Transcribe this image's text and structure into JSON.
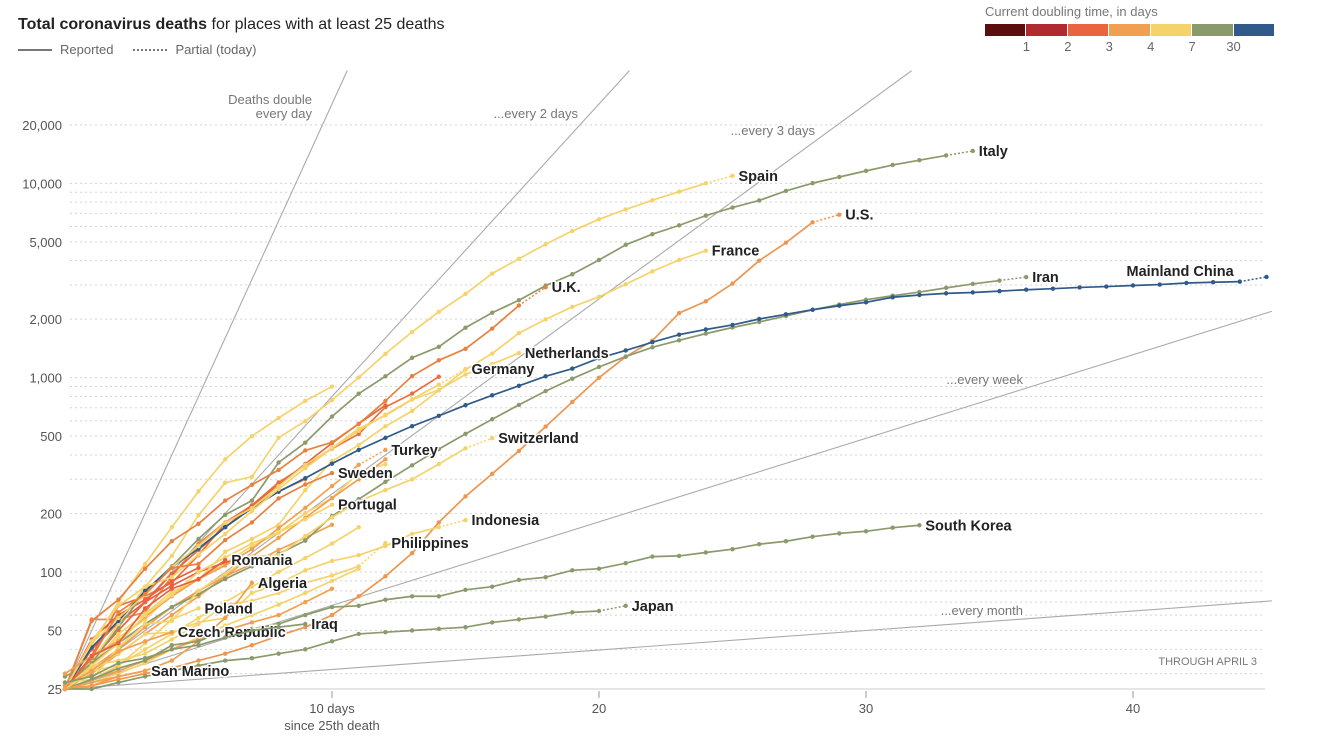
{
  "header": {
    "title_bold": "Total coronavirus deaths",
    "title_rest": " for places with at least 25 deaths",
    "legend_reported": "Reported",
    "legend_partial": "Partial (today)"
  },
  "color_legend": {
    "caption": "Current doubling time, in days",
    "colors": [
      "#5a0e0e",
      "#b02a30",
      "#e8653f",
      "#f0a050",
      "#f5d36a",
      "#8a9a6a",
      "#2f5a8a"
    ],
    "ticks": [
      "1",
      "2",
      "3",
      "4",
      "7",
      "30"
    ]
  },
  "chart_data": {
    "type": "line",
    "scale_y": "log",
    "xlabel_line1": "10 days",
    "xlabel_line2": "since 25th death",
    "xticks": [
      10,
      20,
      30,
      40
    ],
    "xtick_labels": [
      "",
      "20",
      "30",
      "40"
    ],
    "xlim": [
      0,
      45.2
    ],
    "ylim": [
      25,
      38000
    ],
    "yticks": [
      25,
      50,
      100,
      200,
      500,
      1000,
      2000,
      5000,
      10000,
      20000
    ],
    "ytick_labels": [
      "25",
      "50",
      "100",
      "200",
      "500",
      "1,000",
      "2,000",
      "5,000",
      "10,000",
      "20,000"
    ],
    "grid": true,
    "note": "THROUGH APRIL 3",
    "reference_lines": [
      {
        "doubling_days": 1,
        "label1": "Deaths double",
        "label2": "every day"
      },
      {
        "doubling_days": 2,
        "label1": "...every 2 days"
      },
      {
        "doubling_days": 3,
        "label1": "...every 3 days"
      },
      {
        "doubling_days": 7,
        "label1": "...every week"
      },
      {
        "doubling_days": 30,
        "label1": "...every month"
      }
    ],
    "series": [
      {
        "color": "#e8884a",
        "values": [
          25,
          57,
          57,
          62,
          95,
          140,
          180,
          220,
          260,
          300
        ]
      },
      {
        "color": "#e8703f",
        "values": [
          25,
          37,
          67,
          75,
          88,
          122,
          178,
          220,
          289,
          353,
          431,
          513,
          705,
          828,
          1011
        ]
      },
      {
        "color": "#f5d36a",
        "values": [
          25,
          34,
          46,
          57,
          77,
          92,
          111,
          136,
          159,
          201,
          240,
          324,
          359
        ]
      },
      {
        "color": "#e8603f",
        "values": [
          25,
          40,
          55,
          70,
          85,
          100,
          112,
          120
        ]
      },
      {
        "color": "#e8603f",
        "values": [
          25,
          45,
          60,
          72,
          90,
          105
        ]
      },
      {
        "color": "#f0a050",
        "values": [
          25,
          30,
          38,
          48,
          60,
          75,
          95,
          120,
          150,
          190,
          240,
          300,
          380
        ]
      },
      {
        "color": "#f5d36a",
        "values": [
          25,
          28,
          33,
          40,
          48,
          58,
          70,
          84,
          100,
          118,
          140,
          170
        ]
      },
      {
        "color": "#f0a050",
        "values": [
          25,
          32,
          40,
          52,
          66,
          80,
          95,
          110,
          130,
          150,
          175
        ]
      },
      {
        "color": "#f5d36a",
        "values": [
          25,
          27,
          30,
          34,
          40,
          46,
          53,
          60,
          68,
          78,
          90,
          104
        ]
      },
      {
        "color": "#e8653f",
        "values": [
          25,
          35,
          50,
          70,
          98,
          130,
          170,
          220,
          280,
          360,
          460,
          580,
          720
        ]
      },
      {
        "color": "#f5d36a",
        "values": [
          25,
          42,
          70,
          110,
          170,
          260,
          380,
          500,
          620,
          760,
          900
        ]
      },
      {
        "color": "#f0a050",
        "values": [
          25,
          28,
          31,
          35,
          40,
          45,
          50,
          55,
          60,
          70,
          82
        ]
      },
      {
        "name": "Italy",
        "color": "#8a9a6a",
        "partial": true,
        "values": [
          29,
          34,
          52,
          79,
          107,
          148,
          197,
          233,
          366,
          463,
          631,
          827,
          1016,
          1266,
          1441,
          1809,
          2158,
          2503,
          2978,
          3405,
          4032,
          4825,
          5476,
          6077,
          6820,
          7503,
          8165,
          9134,
          10023,
          10779,
          11591,
          12428,
          13155,
          13915,
          14681
        ]
      },
      {
        "name": "Spain",
        "color": "#f5d36a",
        "partial": true,
        "values": [
          25,
          35,
          54,
          84,
          121,
          196,
          288,
          309,
          491,
          598,
          767,
          1002,
          1326,
          1720,
          2182,
          2696,
          3434,
          4089,
          4858,
          5690,
          6528,
          7340,
          8189,
          9053,
          10003,
          10935
        ]
      },
      {
        "name": "U.S.",
        "color": "#ec9650",
        "partial": true,
        "values": [
          25,
          26,
          28,
          30,
          32,
          35,
          38,
          42,
          47,
          52,
          60,
          75,
          95,
          125,
          180,
          245,
          320,
          420,
          560,
          750,
          1000,
          1280,
          1550,
          2150,
          2470,
          3050,
          4000,
          4950,
          6300,
          6900
        ]
      },
      {
        "name": "France",
        "color": "#f5d36a",
        "values": [
          25,
          33,
          48,
          61,
          79,
          91,
          127,
          148,
          175,
          264,
          372,
          450,
          562,
          674,
          860,
          1100,
          1331,
          1696,
          1995,
          2314,
          2606,
          3024,
          3523,
          4032,
          4503
        ]
      },
      {
        "name": "Iran",
        "color": "#8a9a6a",
        "partial": true,
        "values": [
          26,
          34,
          43,
          54,
          66,
          77,
          92,
          107,
          124,
          145,
          194,
          237,
          291,
          354,
          429,
          514,
          611,
          724,
          853,
          988,
          1135,
          1284,
          1433,
          1556,
          1685,
          1812,
          1934,
          2077,
          2234,
          2378,
          2517,
          2640,
          2757,
          2898,
          3036,
          3160,
          3294
        ]
      },
      {
        "name": "Mainland China",
        "color": "#2f5a8a",
        "partial": true,
        "values": [
          25,
          41,
          56,
          80,
          106,
          132,
          170,
          213,
          259,
          304,
          361,
          425,
          490,
          563,
          636,
          722,
          811,
          908,
          1016,
          1113,
          1259,
          1380,
          1523,
          1665,
          1770,
          1868,
          2004,
          2118,
          2236,
          2345,
          2442,
          2592,
          2663,
          2715,
          2744,
          2788,
          2835,
          2870,
          2912,
          2943,
          2981,
          3013,
          3070,
          3098,
          3120,
          3300
        ]
      },
      {
        "name": "U.K.",
        "color": "#e8803f",
        "partial": true,
        "values": [
          25,
          56,
          72,
          104,
          144,
          177,
          233,
          281,
          335,
          422,
          465,
          578,
          759,
          1019,
          1228,
          1408,
          1789,
          2352,
          2921
        ]
      },
      {
        "name": "Netherlands",
        "color": "#f5d36a",
        "values": [
          25,
          43,
          58,
          76,
          106,
          136,
          179,
          213,
          276,
          356,
          434,
          546,
          639,
          771,
          864,
          1039,
          1173,
          1339
        ]
      },
      {
        "name": "Germany",
        "color": "#f5d36a",
        "partial": true,
        "values": [
          25,
          44,
          67,
          84,
          94,
          123,
          157,
          206,
          267,
          342,
          433,
          533,
          645,
          775,
          920,
          1107
        ]
      },
      {
        "name": "Switzerland",
        "color": "#f5d36a",
        "partial": true,
        "values": [
          27,
          28,
          41,
          54,
          56,
          80,
          98,
          120,
          122,
          153,
          191,
          231,
          264,
          300,
          359,
          433,
          488
        ]
      },
      {
        "name": "Turkey",
        "color": "#f0a050",
        "partial": true,
        "values": [
          30,
          37,
          44,
          59,
          75,
          92,
          108,
          131,
          168,
          214,
          277,
          356,
          425
        ]
      },
      {
        "name": "Sweden",
        "color": "#e8803f",
        "values": [
          25,
          36,
          62,
          77,
          105,
          110,
          146,
          180,
          239,
          282,
          323
        ]
      },
      {
        "name": "Portugal",
        "color": "#f5d36a",
        "values": [
          25,
          33,
          43,
          60,
          76,
          100,
          119,
          140,
          160,
          187,
          222
        ]
      },
      {
        "name": "Indonesia",
        "color": "#f5d36a",
        "partial": true,
        "values": [
          25,
          32,
          38,
          48,
          49,
          55,
          58,
          78,
          87,
          102,
          114,
          122,
          136,
          157,
          170,
          185
        ]
      },
      {
        "name": "Philippines",
        "color": "#f5d36a",
        "partial": true,
        "values": [
          25,
          33,
          35,
          38,
          45,
          54,
          68,
          71,
          78,
          88,
          96,
          107,
          141
        ]
      },
      {
        "name": "Romania",
        "color": "#e8603f",
        "values": [
          25,
          37,
          43,
          65,
          82,
          92,
          115
        ]
      },
      {
        "name": "Algeria",
        "color": "#f0a050",
        "values": [
          25,
          26,
          29,
          31,
          35,
          44,
          58,
          88
        ]
      },
      {
        "name": "South Korea",
        "color": "#8a9a6a",
        "values": [
          25,
          28,
          32,
          35,
          42,
          44,
          50,
          51,
          54,
          60,
          66,
          67,
          72,
          75,
          75,
          81,
          84,
          91,
          94,
          102,
          104,
          111,
          120,
          121,
          126,
          131,
          139,
          144,
          152,
          158,
          162,
          169,
          174
        ]
      },
      {
        "name": "Poland",
        "color": "#f5d36a",
        "values": [
          25,
          31,
          33,
          43,
          57,
          65
        ]
      },
      {
        "name": "Czech Republic",
        "color": "#f0a050",
        "values": [
          26,
          31,
          39,
          44,
          49
        ]
      },
      {
        "name": "Iraq",
        "color": "#8a9a6a",
        "values": [
          27,
          29,
          34,
          36,
          40,
          42,
          46,
          50,
          52,
          54
        ]
      },
      {
        "name": "Japan",
        "color": "#8a9a6a",
        "partial": true,
        "values": [
          25,
          25,
          27,
          29,
          31,
          33,
          35,
          36,
          38,
          40,
          44,
          48,
          49,
          50,
          51,
          52,
          55,
          57,
          59,
          62,
          63,
          67
        ]
      },
      {
        "name": "San Marino",
        "color": "#f0a050",
        "values": [
          25,
          27,
          29,
          31
        ]
      }
    ]
  }
}
